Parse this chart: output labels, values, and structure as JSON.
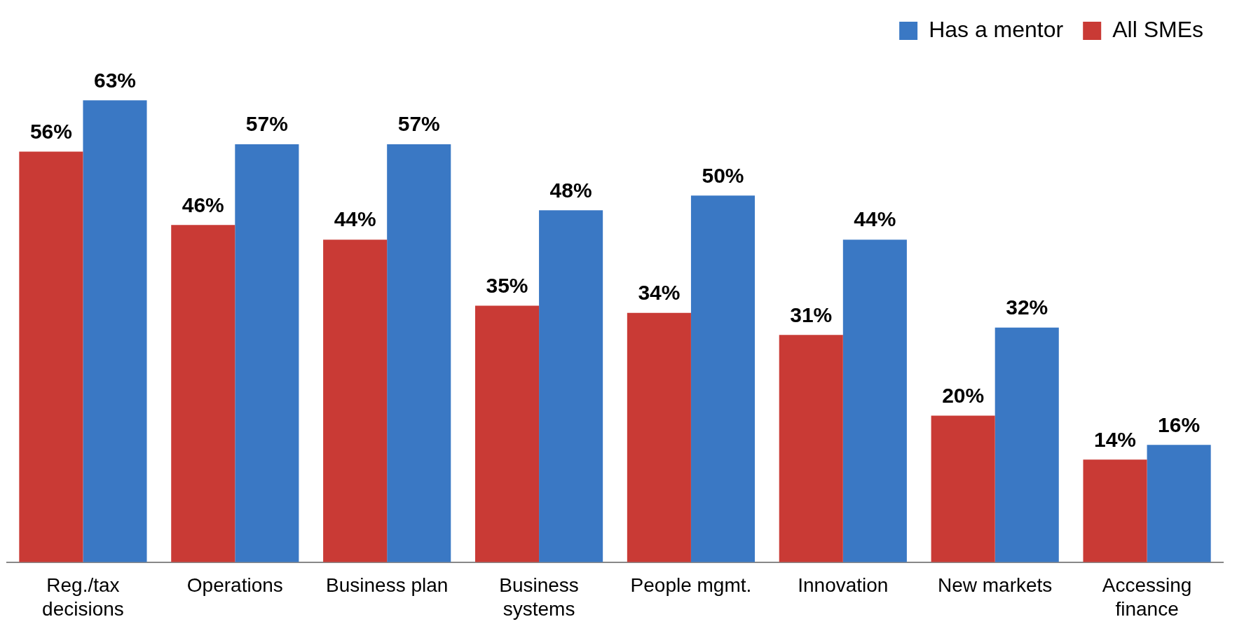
{
  "chart_data": {
    "type": "bar",
    "categories": [
      "Reg./tax decisions",
      "Operations",
      "Business plan",
      "Business systems",
      "People mgmt.",
      "Innovation",
      "New markets",
      "Accessing finance"
    ],
    "series": [
      {
        "name": "All SMEs",
        "color": "#c93a35",
        "values": [
          56,
          46,
          44,
          35,
          34,
          31,
          20,
          14
        ],
        "value_labels": [
          "56%",
          "46%",
          "44%",
          "35%",
          "34%",
          "31%",
          "20%",
          "14%"
        ]
      },
      {
        "name": "Has a mentor",
        "color": "#3a78c4",
        "values": [
          63,
          57,
          57,
          48,
          50,
          44,
          32,
          16
        ],
        "value_labels": [
          "63%",
          "57%",
          "57%",
          "48%",
          "50%",
          "44%",
          "32%",
          "16%"
        ]
      }
    ],
    "legend": "top right",
    "grid": false
  }
}
